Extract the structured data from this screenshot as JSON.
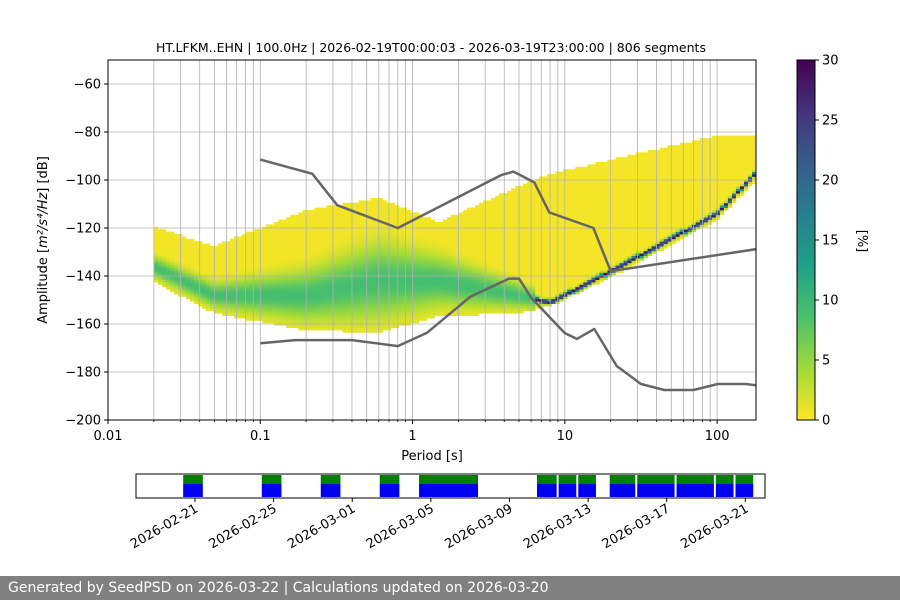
{
  "chart_data": {
    "type": "heatmap",
    "title": "HT.LFKM..EHN | 100.0Hz | 2026-02-19T00:00:03 - 2026-03-19T23:00:00 | 806 segments",
    "xlabel": "Period [s]",
    "ylabel_prefix": "Amplitude [",
    "ylabel_math": "m²/s⁴/Hz",
    "ylabel_suffix": "] [dB]",
    "xscale": "log",
    "xlim": [
      0.01,
      180
    ],
    "ylim": [
      -200,
      -50
    ],
    "x_ticks": [
      {
        "value": 0.01,
        "label": "0.01"
      },
      {
        "value": 0.1,
        "label": "0.1"
      },
      {
        "value": 1,
        "label": "1"
      },
      {
        "value": 10,
        "label": "10"
      },
      {
        "value": 100,
        "label": "100"
      }
    ],
    "y_ticks": [
      {
        "value": -60,
        "label": "−60"
      },
      {
        "value": -80,
        "label": "−80"
      },
      {
        "value": -100,
        "label": "−100"
      },
      {
        "value": -120,
        "label": "−120"
      },
      {
        "value": -140,
        "label": "−140"
      },
      {
        "value": -160,
        "label": "−160"
      },
      {
        "value": -180,
        "label": "−180"
      },
      {
        "value": -200,
        "label": "−200"
      }
    ],
    "grid": true,
    "colorbar": {
      "label": "[%]",
      "range": [
        0,
        30
      ],
      "ticks": [
        {
          "value": 0,
          "label": "0"
        },
        {
          "value": 5,
          "label": "5"
        },
        {
          "value": 10,
          "label": "10"
        },
        {
          "value": 15,
          "label": "15"
        },
        {
          "value": 20,
          "label": "20"
        },
        {
          "value": 25,
          "label": "25"
        },
        {
          "value": 30,
          "label": "30"
        }
      ],
      "colors": [
        "#fde725",
        "#a0da39",
        "#4ac16d",
        "#1fa187",
        "#277f8e",
        "#365c8d",
        "#46327e",
        "#440154"
      ]
    },
    "noise_models": [
      {
        "name": "NHNM",
        "color": "#666666",
        "points": [
          [
            0.1,
            -91.5
          ],
          [
            0.22,
            -97.4
          ],
          [
            0.32,
            -110.5
          ],
          [
            0.8,
            -120
          ],
          [
            3.8,
            -98
          ],
          [
            4.6,
            -96.5
          ],
          [
            6.3,
            -101
          ],
          [
            7.9,
            -113.5
          ],
          [
            15.4,
            -120
          ],
          [
            20,
            -138
          ],
          [
            354,
            -126
          ]
        ]
      },
      {
        "name": "NLNM",
        "color": "#666666",
        "points": [
          [
            0.1,
            -168
          ],
          [
            0.17,
            -166.7
          ],
          [
            0.4,
            -166.7
          ],
          [
            0.8,
            -169.2
          ],
          [
            1.24,
            -163.7
          ],
          [
            2.4,
            -148.6
          ],
          [
            4.3,
            -141.1
          ],
          [
            5,
            -141.1
          ],
          [
            6,
            -149
          ],
          [
            10,
            -163.8
          ],
          [
            12,
            -166.2
          ],
          [
            15.6,
            -162.1
          ],
          [
            21.9,
            -177.5
          ],
          [
            31.6,
            -185
          ],
          [
            45,
            -187.5
          ],
          [
            70,
            -187.5
          ],
          [
            101,
            -185
          ],
          [
            154,
            -185
          ],
          [
            180,
            -185.5
          ]
        ]
      }
    ],
    "distribution_summary": [
      {
        "period": 0.02,
        "mode_db": -136,
        "low_db": -142,
        "high_db": -120
      },
      {
        "period": 0.05,
        "mode_db": -148,
        "low_db": -155,
        "high_db": -128
      },
      {
        "period": 0.2,
        "mode_db": -148,
        "low_db": -162,
        "high_db": -113
      },
      {
        "period": 0.6,
        "mode_db": -142,
        "low_db": -163,
        "high_db": -108
      },
      {
        "period": 1.5,
        "mode_db": -142,
        "low_db": -156,
        "high_db": -118
      },
      {
        "period": 5,
        "mode_db": -148,
        "low_db": -155,
        "high_db": -103
      },
      {
        "period": 8,
        "mode_db": -151,
        "low_db": -152,
        "high_db": -98
      },
      {
        "period": 20,
        "mode_db": -138,
        "low_db": -140,
        "high_db": -92
      },
      {
        "period": 100,
        "mode_db": -114,
        "low_db": -116,
        "high_db": -82
      },
      {
        "period": 180,
        "mode_db": -97,
        "low_db": -100,
        "high_db": -82
      }
    ],
    "availability": {
      "date_ticks": [
        "2026-02-21",
        "2026-02-25",
        "2026-03-01",
        "2026-03-05",
        "2026-03-09",
        "2026-03-13",
        "2026-03-17",
        "2026-03-21"
      ],
      "range_days": [
        -1.0,
        31.0
      ],
      "data_color": "#0000ee",
      "processed_color": "#008000",
      "segments_days": [
        [
          1.4,
          2.4
        ],
        [
          5.4,
          6.4
        ],
        [
          8.4,
          9.4
        ],
        [
          11.4,
          12.4
        ],
        [
          13.4,
          16.4
        ],
        [
          19.4,
          20.4
        ],
        [
          20.5,
          21.4
        ],
        [
          21.5,
          22.4
        ],
        [
          23.1,
          24.4
        ],
        [
          24.5,
          26.4
        ],
        [
          26.5,
          28.4
        ],
        [
          28.5,
          29.4
        ],
        [
          29.5,
          30.4
        ]
      ]
    }
  },
  "footer": {
    "text": "Generated by SeedPSD on 2026-03-22 | Calculations updated on 2026-03-20"
  }
}
